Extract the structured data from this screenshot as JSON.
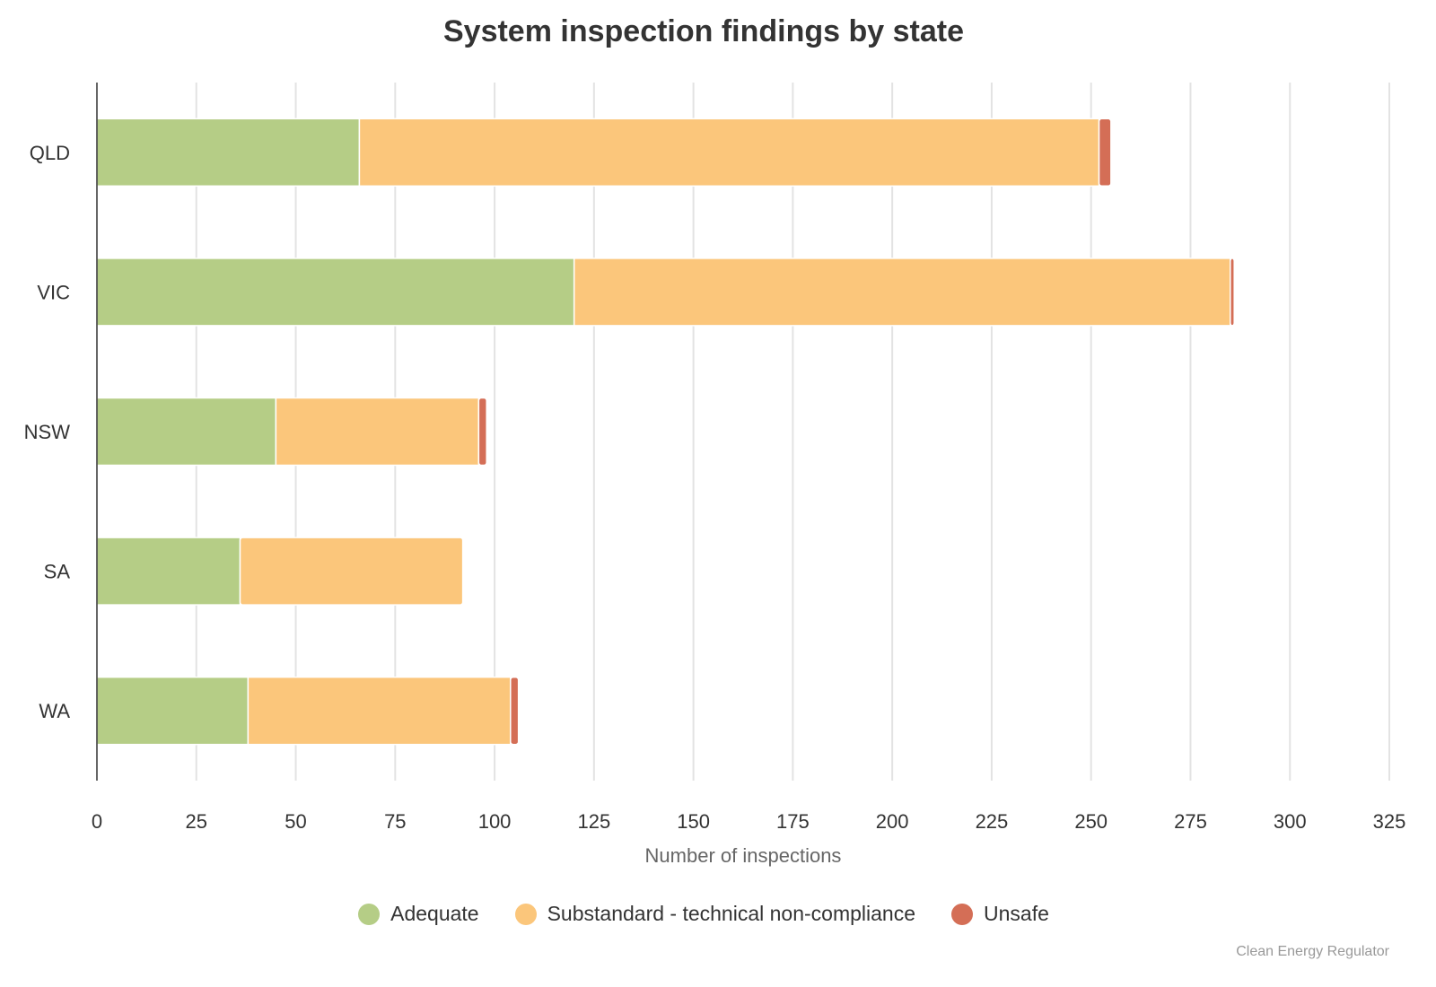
{
  "chart_data": {
    "type": "bar",
    "orientation": "horizontal",
    "stacked": true,
    "title": "System inspection findings by state",
    "xlabel": "Number of inspections",
    "ylabel": "",
    "categories": [
      "QLD",
      "VIC",
      "NSW",
      "SA",
      "WA"
    ],
    "xlim": [
      0,
      325
    ],
    "xticks": [
      "0",
      "25",
      "50",
      "75",
      "100",
      "125",
      "150",
      "175",
      "200",
      "225",
      "250",
      "275",
      "300",
      "325"
    ],
    "grid": true,
    "legend_position": "bottom",
    "series": [
      {
        "name": "Adequate",
        "color": "#b5cd86",
        "values": [
          66,
          120,
          45,
          36,
          38
        ]
      },
      {
        "name": "Substandard - technical non-compliance",
        "color": "#fbc67b",
        "values": [
          186,
          165,
          51,
          56,
          66
        ]
      },
      {
        "name": "Unsafe",
        "color": "#d46e56",
        "values": [
          3,
          1,
          2,
          0,
          2
        ]
      }
    ]
  },
  "credit": "Clean Energy Regulator"
}
